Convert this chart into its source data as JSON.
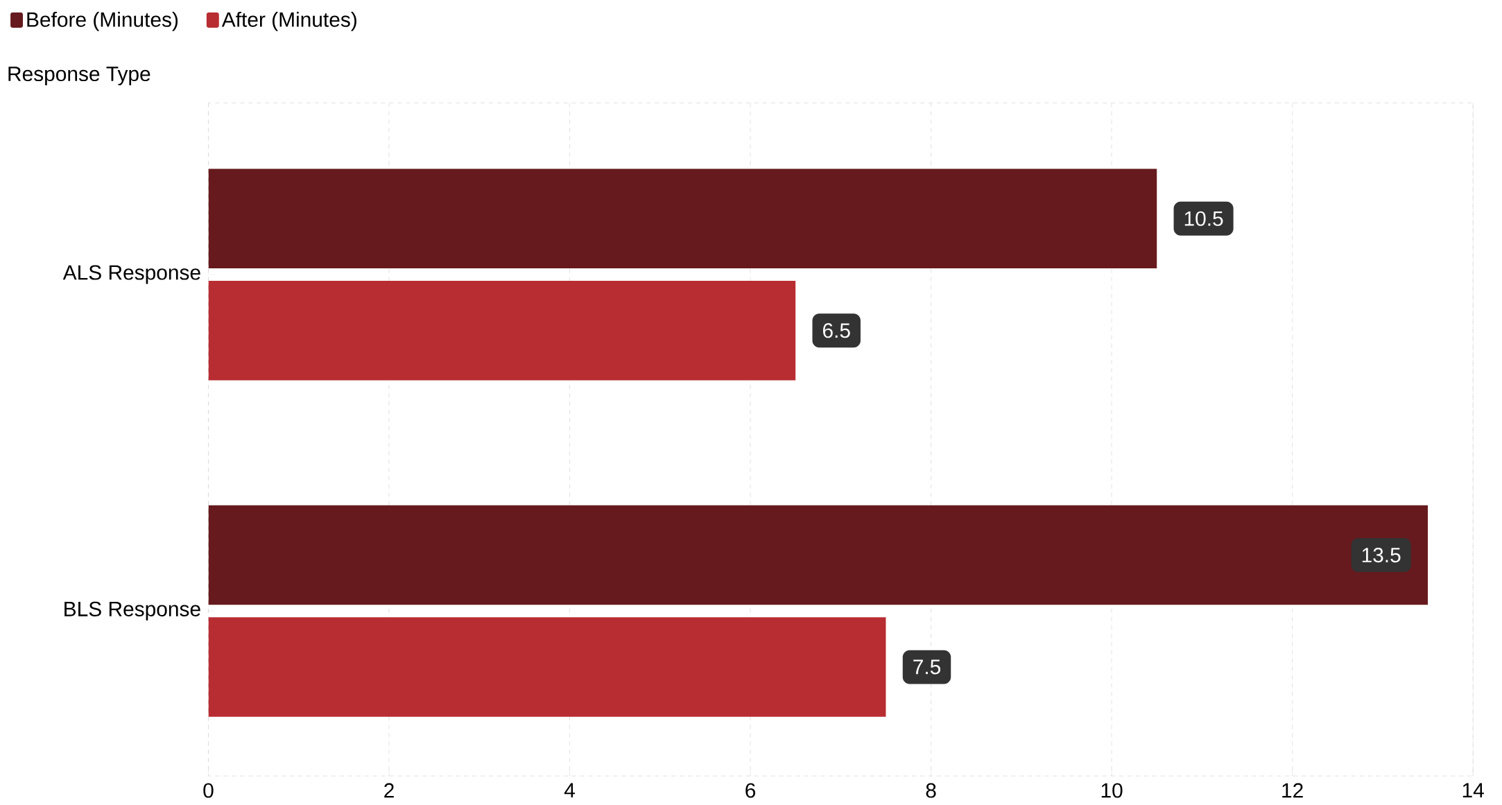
{
  "chart_data": {
    "type": "bar",
    "orientation": "horizontal",
    "ylabel": "Response Type",
    "categories": [
      "ALS Response",
      "BLS Response"
    ],
    "series": [
      {
        "name": "Before (Minutes)",
        "color": "#661a1d",
        "values": [
          10.5,
          13.5
        ]
      },
      {
        "name": "After (Minutes)",
        "color": "#b82d32",
        "values": [
          6.5,
          7.5
        ]
      }
    ],
    "xlim": [
      0,
      14
    ],
    "xticks": [
      0,
      2,
      4,
      6,
      8,
      10,
      12,
      14
    ],
    "grid": "x",
    "legend": "top left",
    "data_labels": true
  }
}
